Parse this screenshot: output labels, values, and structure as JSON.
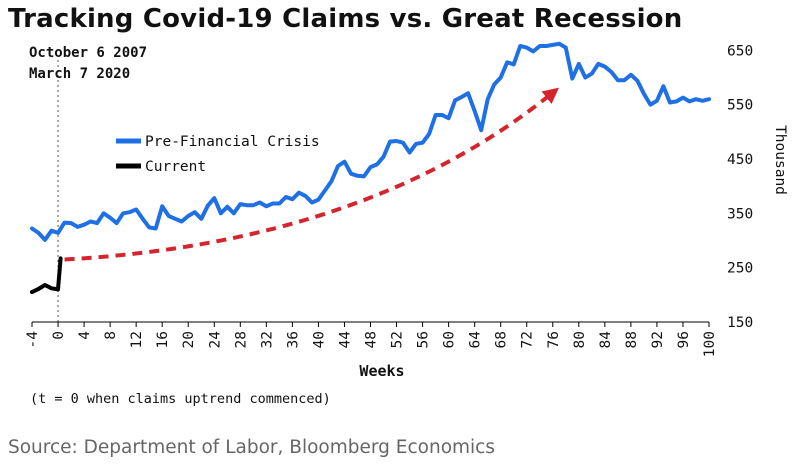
{
  "title": "Tracking Covid-19 Claims vs. Great Recession",
  "note": "(t = 0 when claims uptrend commenced)",
  "source": "Source: Department of Labor, Bloomberg Economics",
  "colors": {
    "pre_crisis": "#1f6fe5",
    "current": "#000000",
    "arrow": "#d6242d",
    "axis": "#000000",
    "baseline_marker": "#555555"
  },
  "chart_data": {
    "type": "line",
    "title": "Tracking Covid-19 Claims vs. Great Recession",
    "xlabel": "Weeks",
    "ylabel": "Thousand",
    "xlim": [
      -4,
      100
    ],
    "ylim": [
      150,
      680
    ],
    "y_axis_side": "right",
    "xticks": [
      -4,
      0,
      4,
      8,
      12,
      16,
      20,
      24,
      28,
      32,
      36,
      40,
      44,
      48,
      52,
      56,
      60,
      64,
      68,
      72,
      76,
      80,
      84,
      88,
      92,
      96,
      100
    ],
    "yticks": [
      150,
      250,
      350,
      450,
      550,
      650
    ],
    "grid": false,
    "reference_line": {
      "x": 0,
      "style": "dashed"
    },
    "date_labels": [
      "October 6 2007",
      "March 7 2020"
    ],
    "legend": {
      "placement": "upper-left",
      "entries": [
        "Pre-Financial Crisis",
        "Current"
      ]
    },
    "series": [
      {
        "name": "Pre-Financial Crisis",
        "x": [
          -4,
          -3,
          -2,
          -1,
          0,
          1,
          2,
          3,
          4,
          5,
          6,
          7,
          8,
          9,
          10,
          11,
          12,
          13,
          14,
          15,
          16,
          17,
          18,
          19,
          20,
          21,
          22,
          23,
          24,
          25,
          26,
          27,
          28,
          29,
          30,
          31,
          32,
          33,
          34,
          35,
          36,
          37,
          38,
          39,
          40,
          41,
          42,
          43,
          44,
          45,
          46,
          47,
          48,
          49,
          50,
          51,
          52,
          53,
          54,
          55,
          56,
          57,
          58,
          59,
          60,
          61,
          62,
          63,
          64,
          65,
          66,
          67,
          68,
          69,
          70,
          71,
          72,
          73,
          74,
          75,
          76,
          77,
          78,
          79,
          80,
          81,
          82,
          83,
          84,
          85,
          86,
          87,
          88,
          89,
          90,
          91,
          92,
          93,
          94,
          95,
          96,
          97,
          98,
          99,
          100
        ],
        "y": [
          322,
          314,
          301,
          318,
          314,
          333,
          332,
          325,
          329,
          335,
          332,
          350,
          342,
          332,
          350,
          352,
          357,
          340,
          324,
          322,
          363,
          345,
          340,
          335,
          345,
          352,
          340,
          364,
          378,
          350,
          362,
          350,
          367,
          365,
          365,
          370,
          363,
          368,
          368,
          380,
          376,
          388,
          382,
          370,
          375,
          392,
          409,
          437,
          445,
          423,
          419,
          418,
          435,
          440,
          454,
          482,
          483,
          480,
          462,
          478,
          480,
          496,
          531,
          531,
          525,
          558,
          564,
          571,
          538,
          503,
          560,
          587,
          600,
          628,
          624,
          658,
          655,
          648,
          658,
          658,
          660,
          662,
          655,
          598,
          625,
          600,
          607,
          625,
          620,
          610,
          595,
          595,
          605,
          594,
          570,
          550,
          557,
          584,
          554,
          556,
          563,
          556,
          560,
          557,
          560
        ]
      },
      {
        "name": "Current",
        "x": [
          -4,
          -3,
          -2,
          -1,
          0,
          0.4
        ],
        "y": [
          205,
          211,
          218,
          212,
          210,
          267
        ]
      }
    ],
    "annotations": [
      {
        "type": "arrow",
        "style": "dashed",
        "color": "#d6242d",
        "from": [
          1,
          265
        ],
        "to": [
          76,
          572
        ]
      }
    ]
  }
}
